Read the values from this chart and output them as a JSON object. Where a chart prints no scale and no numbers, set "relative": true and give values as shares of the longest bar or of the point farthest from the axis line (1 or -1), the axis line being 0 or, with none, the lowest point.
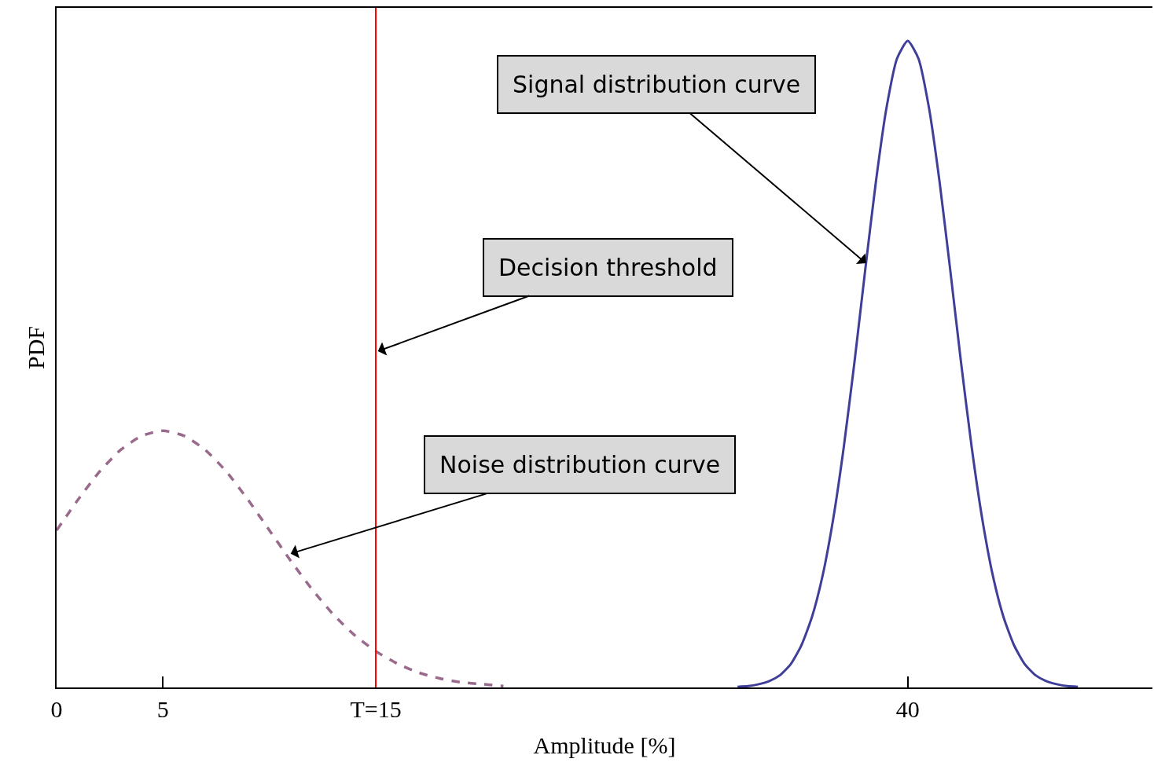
{
  "chart_data": {
    "type": "line",
    "relative": true,
    "xlabel": "Amplitude [%]",
    "ylabel": "PDF",
    "xlim": [
      0,
      51.5
    ],
    "xticks": [
      0,
      5,
      {
        "value": 15,
        "label": "T=15"
      },
      40
    ],
    "series": [
      {
        "color": "#9a6a8c",
        "line_style": "dashed",
        "x": [
          0,
          1,
          2,
          3,
          4,
          5,
          6,
          7,
          8,
          9,
          10,
          11,
          12,
          13,
          14,
          15,
          16,
          17,
          18,
          19,
          20,
          21
        ],
        "values": [
          0.243,
          0.29,
          0.333,
          0.367,
          0.389,
          0.397,
          0.389,
          0.367,
          0.333,
          0.29,
          0.243,
          0.196,
          0.152,
          0.113,
          0.081,
          0.056,
          0.037,
          0.023,
          0.014,
          0.008,
          0.005,
          0.002
        ]
      },
      {
        "color": "#3f3f99",
        "line_style": "solid",
        "x": [
          32,
          32.5,
          33,
          33.5,
          34,
          34.5,
          35,
          35.5,
          36,
          36.5,
          37,
          37.5,
          38,
          38.5,
          39,
          39.5,
          40,
          40.5,
          41,
          41.5,
          42,
          42.5,
          43,
          43.5,
          44,
          44.5,
          45,
          45.5,
          46,
          46.5,
          47,
          47.5,
          48
        ],
        "values": [
          0.001,
          0.002,
          0.005,
          0.01,
          0.019,
          0.036,
          0.065,
          0.109,
          0.173,
          0.261,
          0.373,
          0.504,
          0.645,
          0.781,
          0.896,
          0.973,
          1,
          0.973,
          0.896,
          0.781,
          0.645,
          0.504,
          0.373,
          0.261,
          0.173,
          0.109,
          0.065,
          0.036,
          0.019,
          0.01,
          0.005,
          0.002,
          0.001
        ]
      }
    ],
    "ref_lines": [
      {
        "axis": "x",
        "value": 15,
        "color": "#ff0000",
        "line_style": "solid"
      }
    ],
    "annotations": [
      {
        "text": "Signal distribution curve",
        "x": 38.04,
        "y": 0.656
      },
      {
        "text": "Decision threshold",
        "x": 15.1,
        "y": 0.52
      },
      {
        "text": "Noise distribution curve",
        "x": 11,
        "y": 0.207
      }
    ],
    "marker": "none"
  }
}
